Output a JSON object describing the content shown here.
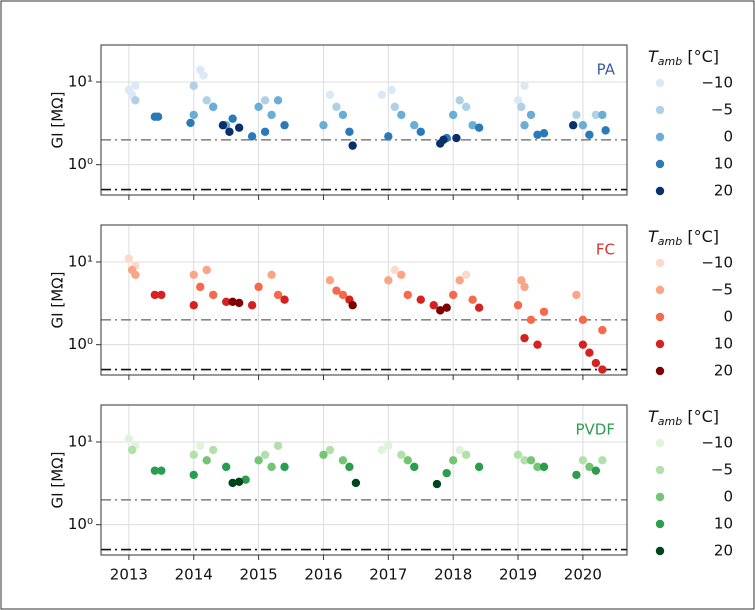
{
  "chart_data": [
    {
      "type": "scatter",
      "title": "PA",
      "title_color": "#3b5ba5",
      "ylabel": "GI [MΩ]",
      "y_scale": "log",
      "grid": true,
      "xlim": [
        2012.57,
        2020.68
      ],
      "xticks": [
        2013,
        2014,
        2015,
        2016,
        2017,
        2018,
        2019,
        2020
      ],
      "show_xtick_labels": false,
      "ylim": [
        0.43,
        28
      ],
      "yticks": [
        {
          "value": 1,
          "label": "10⁰"
        },
        {
          "value": 10,
          "label": "10¹"
        }
      ],
      "reference_lines": [
        {
          "value": 2,
          "color": "#888888"
        },
        {
          "value": 0.5,
          "color": "#111111"
        }
      ],
      "legend_title": [
        "T",
        "amb",
        " [°C]"
      ],
      "series": [
        {
          "name": "−10",
          "color": "#dbe9f6",
          "x": [
            2013.0,
            2013.05,
            2013.1,
            2014.1,
            2014.15,
            2016.1,
            2016.9,
            2017.05,
            2019.0,
            2019.1
          ],
          "values": [
            8,
            7,
            9,
            14,
            12,
            7,
            7,
            8,
            6,
            9
          ]
        },
        {
          "name": "−5",
          "color": "#aed1e7",
          "x": [
            2013.1,
            2014.0,
            2014.2,
            2014.3,
            2015.1,
            2016.2,
            2017.1,
            2018.1,
            2018.2,
            2019.05,
            2019.9,
            2020.2
          ],
          "values": [
            6,
            9,
            6,
            5,
            6,
            5,
            5,
            6,
            5,
            5,
            4,
            4
          ]
        },
        {
          "name": "0",
          "color": "#6aaed6",
          "x": [
            2014.0,
            2014.3,
            2014.5,
            2015.0,
            2015.2,
            2015.3,
            2016.0,
            2016.3,
            2017.2,
            2017.4,
            2018.0,
            2018.3,
            2019.1,
            2019.2,
            2020.0,
            2020.3
          ],
          "values": [
            4,
            5,
            3,
            5,
            4,
            6,
            3,
            4,
            4,
            3,
            4,
            3,
            3,
            4,
            3,
            4
          ]
        },
        {
          "name": "10",
          "color": "#2a7ab9",
          "x": [
            2013.4,
            2013.45,
            2013.95,
            2014.6,
            2014.9,
            2015.1,
            2015.4,
            2016.4,
            2017.0,
            2017.5,
            2017.9,
            2018.4,
            2019.3,
            2019.4,
            2020.1,
            2020.35
          ],
          "values": [
            3.8,
            3.8,
            3.2,
            3.6,
            2.2,
            2.5,
            3,
            2.5,
            2.2,
            2.5,
            2.1,
            2.8,
            2.3,
            2.4,
            2.3,
            2.6
          ]
        },
        {
          "name": "20",
          "color": "#08306b",
          "x": [
            2014.45,
            2014.55,
            2014.7,
            2016.45,
            2017.8,
            2017.85,
            2018.05,
            2019.85
          ],
          "values": [
            3,
            2.5,
            2.8,
            1.7,
            1.8,
            2.0,
            2.1,
            3.0
          ]
        }
      ]
    },
    {
      "type": "scatter",
      "title": "FC",
      "title_color": "#e03030",
      "ylabel": "GI [MΩ]",
      "y_scale": "log",
      "grid": true,
      "xlim": [
        2012.57,
        2020.68
      ],
      "xticks": [
        2013,
        2014,
        2015,
        2016,
        2017,
        2018,
        2019,
        2020
      ],
      "show_xtick_labels": false,
      "ylim": [
        0.43,
        28
      ],
      "yticks": [
        {
          "value": 1,
          "label": "10⁰"
        },
        {
          "value": 10,
          "label": "10¹"
        }
      ],
      "reference_lines": [
        {
          "value": 2,
          "color": "#888888"
        },
        {
          "value": 0.5,
          "color": "#111111"
        }
      ],
      "legend_title": [
        "T",
        "amb",
        " [°C]"
      ],
      "series": [
        {
          "name": "−10",
          "color": "#fcd9c8",
          "x": [
            2013.0,
            2013.1,
            2017.1,
            2018.2
          ],
          "values": [
            11,
            9,
            8,
            7
          ]
        },
        {
          "name": "−5",
          "color": "#fca486",
          "x": [
            2013.05,
            2013.1,
            2014.0,
            2014.2,
            2015.2,
            2016.1,
            2017.0,
            2017.2,
            2018.1,
            2019.05,
            2019.1,
            2019.9
          ],
          "values": [
            8,
            7,
            7,
            8,
            7,
            6,
            6,
            7,
            6,
            6,
            5,
            4
          ]
        },
        {
          "name": "0",
          "color": "#f6694b",
          "x": [
            2014.1,
            2014.3,
            2015.0,
            2015.3,
            2016.2,
            2016.3,
            2017.3,
            2018.0,
            2018.3,
            2019.0,
            2019.2,
            2019.4,
            2020.0,
            2020.3
          ],
          "values": [
            5,
            4,
            5,
            4,
            4.5,
            4,
            4,
            4,
            3.5,
            3,
            2,
            2.5,
            2,
            1.5
          ]
        },
        {
          "name": "10",
          "color": "#d52221",
          "x": [
            2013.4,
            2013.5,
            2014.0,
            2014.5,
            2014.9,
            2015.4,
            2016.4,
            2017.5,
            2017.7,
            2018.4,
            2019.1,
            2019.3,
            2020.0,
            2020.1,
            2020.2,
            2020.3
          ],
          "values": [
            4,
            4,
            3,
            3.3,
            3,
            3.5,
            3.5,
            3.5,
            3,
            2.8,
            1.2,
            1.0,
            1.0,
            0.8,
            0.6,
            0.5
          ]
        },
        {
          "name": "20",
          "color": "#7f0000",
          "x": [
            2014.6,
            2014.7,
            2016.45,
            2017.8,
            2017.9
          ],
          "values": [
            3.3,
            3.2,
            3.0,
            2.6,
            2.8
          ]
        }
      ]
    },
    {
      "type": "scatter",
      "title": "PVDF",
      "title_color": "#2a9d4f",
      "ylabel": "GI [MΩ]",
      "y_scale": "log",
      "grid": true,
      "xlim": [
        2012.57,
        2020.68
      ],
      "xticks": [
        2013,
        2014,
        2015,
        2016,
        2017,
        2018,
        2019,
        2020
      ],
      "show_xtick_labels": true,
      "ylim": [
        0.43,
        28
      ],
      "yticks": [
        {
          "value": 1,
          "label": "10⁰"
        },
        {
          "value": 10,
          "label": "10¹"
        }
      ],
      "reference_lines": [
        {
          "value": 2,
          "color": "#888888"
        },
        {
          "value": 0.5,
          "color": "#111111"
        }
      ],
      "legend_title": [
        "T",
        "amb",
        " [°C]"
      ],
      "series": [
        {
          "name": "−10",
          "color": "#e0f3db",
          "x": [
            2013.0,
            2013.1,
            2014.1,
            2016.9,
            2017.0,
            2018.1
          ],
          "values": [
            11,
            9,
            9,
            8,
            9,
            8
          ]
        },
        {
          "name": "−5",
          "color": "#b2e0ab",
          "x": [
            2013.05,
            2014.0,
            2014.3,
            2015.1,
            2015.3,
            2016.1,
            2017.2,
            2018.2,
            2019.0,
            2019.1,
            2020.0,
            2020.3
          ],
          "values": [
            8,
            7,
            8,
            7,
            9,
            8,
            7,
            7,
            7,
            6,
            6,
            6
          ]
        },
        {
          "name": "0",
          "color": "#74c476",
          "x": [
            2014.2,
            2015.0,
            2015.2,
            2016.0,
            2016.3,
            2017.3,
            2018.0,
            2019.2,
            2019.3,
            2020.1
          ],
          "values": [
            6,
            6,
            5,
            7,
            6,
            6,
            6,
            6,
            5,
            5
          ]
        },
        {
          "name": "10",
          "color": "#2a9d4f",
          "x": [
            2013.4,
            2013.5,
            2014.0,
            2014.5,
            2014.8,
            2015.4,
            2016.4,
            2017.4,
            2017.9,
            2018.4,
            2019.4,
            2019.9,
            2020.2
          ],
          "values": [
            4.5,
            4.5,
            4,
            5,
            3.5,
            5,
            5,
            5,
            4.2,
            5,
            5,
            4,
            4.5
          ]
        },
        {
          "name": "20",
          "color": "#00441b",
          "x": [
            2014.6,
            2014.7,
            2016.5,
            2017.75
          ],
          "values": [
            3.2,
            3.3,
            3.2,
            3.1
          ]
        }
      ]
    }
  ]
}
